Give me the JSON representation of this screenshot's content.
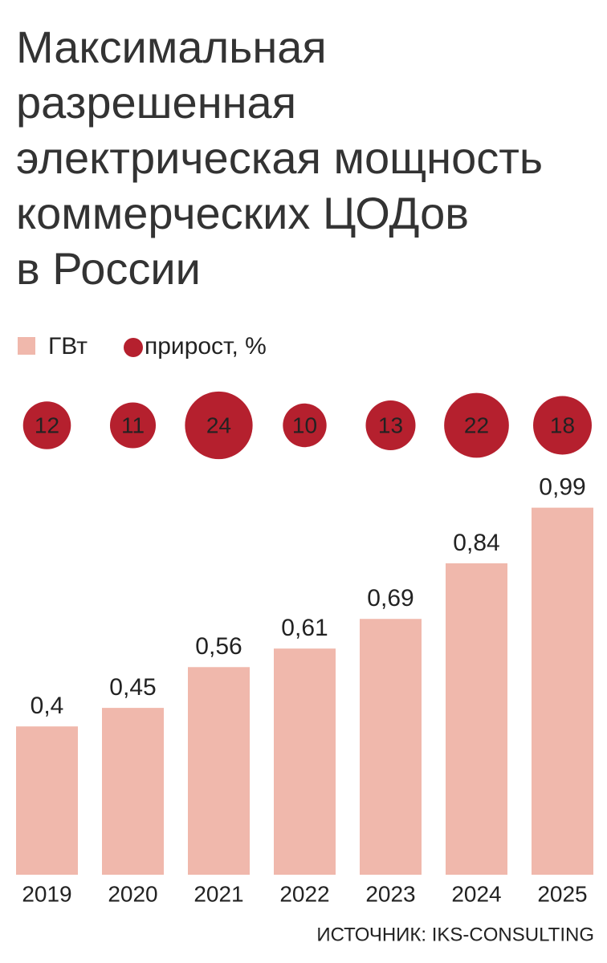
{
  "chart_data": {
    "type": "bar",
    "title": [
      "Максимальная",
      "разрешенная",
      "электрическая мощность",
      "коммерческих ЦОДов",
      "в России"
    ],
    "categories": [
      "2019",
      "2020",
      "2021",
      "2022",
      "2023",
      "2024",
      "2025"
    ],
    "series": [
      {
        "name": "ГВт",
        "color": "#f0b8ac",
        "values": [
          0.4,
          0.45,
          0.56,
          0.61,
          0.69,
          0.84,
          0.99
        ],
        "value_labels": [
          "0,4",
          "0,45",
          "0,56",
          "0,61",
          "0,69",
          "0,84",
          "0,99"
        ]
      },
      {
        "name": "прирост, %",
        "color": "#b5202e",
        "values": [
          12,
          11,
          24,
          10,
          13,
          22,
          18
        ]
      }
    ],
    "source": "ИСТОЧНИК: IKS-CONSULTING"
  }
}
